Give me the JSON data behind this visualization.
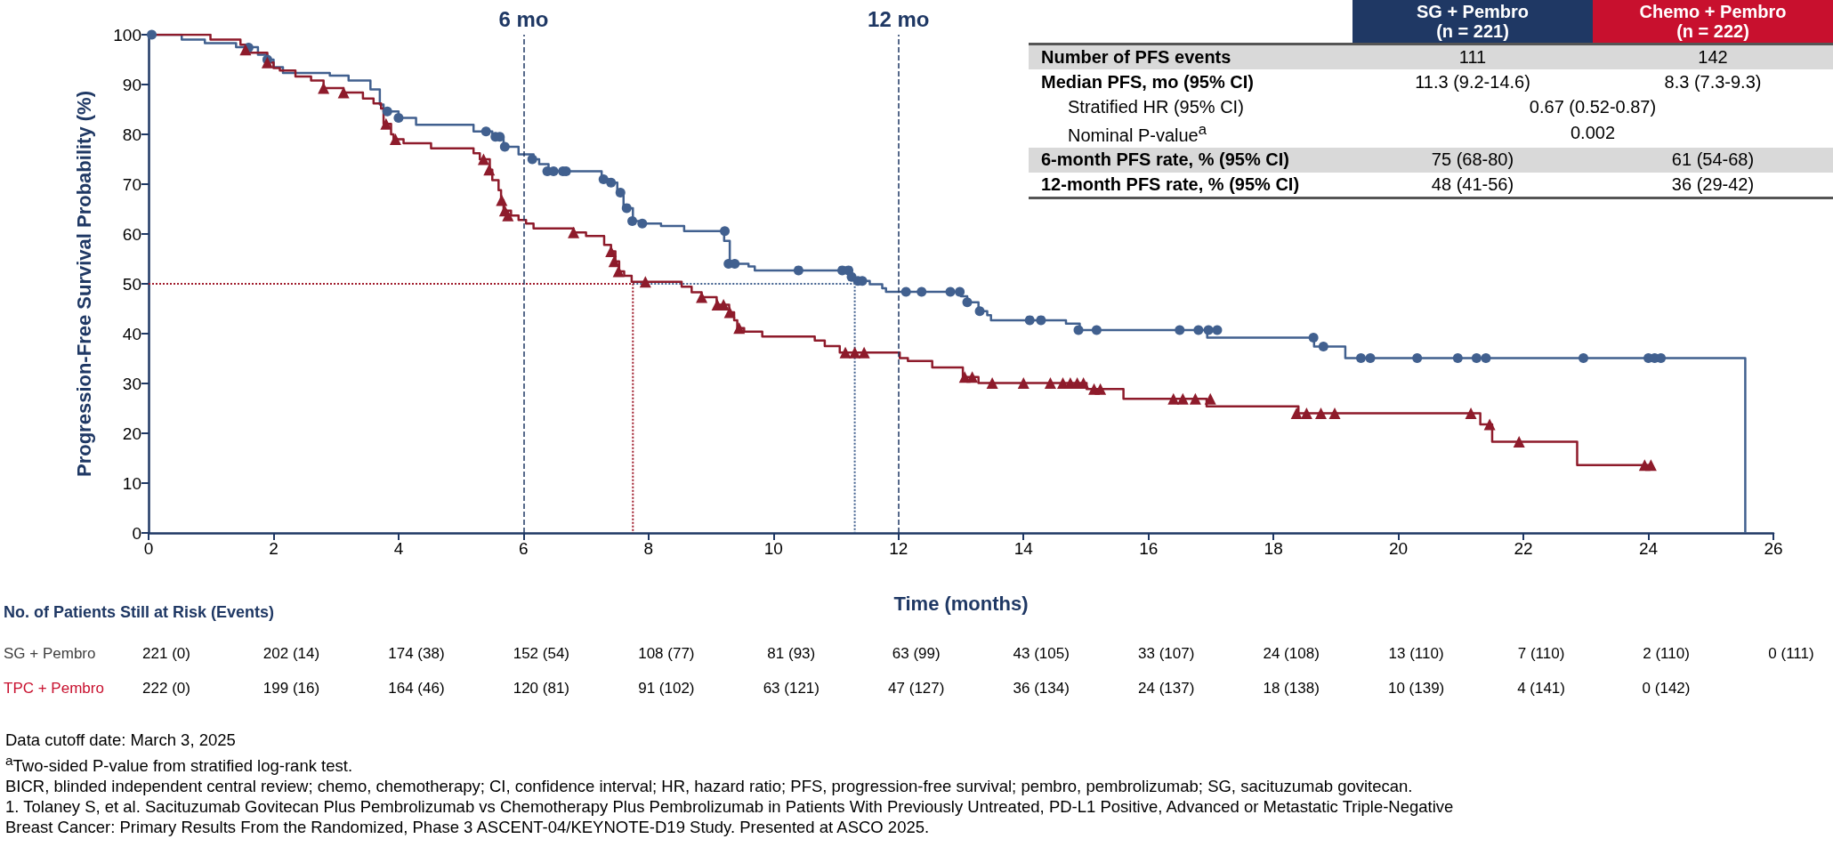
{
  "chart_data": [
    {
      "type": "step",
      "xlabel": "Time (months)",
      "ylabel": "Progression-Free Survival Probability (%)",
      "xlim": [
        0,
        26
      ],
      "ylim": [
        0,
        100
      ],
      "xticks": [
        0,
        2,
        4,
        6,
        8,
        10,
        12,
        14,
        16,
        18,
        20,
        22,
        24,
        26
      ],
      "yticks": [
        0,
        10,
        20,
        30,
        40,
        50,
        60,
        70,
        80,
        90,
        100
      ],
      "series": [
        {
          "type": "line",
          "color": "#41608f",
          "line_style": "dotted",
          "x": [
            7.75,
            11.3,
            11.3
          ],
          "values": [
            50,
            50,
            0
          ]
        },
        {
          "type": "line",
          "color": "#a01c2c",
          "line_style": "dotted",
          "x": [
            0,
            7.75,
            7.75
          ],
          "values": [
            50,
            50,
            0
          ]
        },
        {
          "type": "step",
          "color": "#41608f",
          "x": [
            0,
            0.53,
            0.9,
            1.4,
            1.75,
            1.9,
            2.0,
            2.15,
            2.9,
            3.2,
            3.55,
            3.7,
            3.76,
            4.0,
            4.28,
            5.2,
            5.5,
            5.68,
            5.92,
            6.16,
            6.25,
            6.4,
            7.25,
            7.4,
            7.5,
            7.6,
            7.75,
            7.93,
            8.2,
            8.57,
            9.21,
            9.3,
            9.6,
            9.7,
            11.2,
            11.3,
            11.54,
            11.74,
            11.8,
            13.0,
            13.1,
            13.28,
            13.42,
            13.48,
            14.68,
            14.9,
            16.94,
            18.65,
            19.15,
            25.55
          ],
          "values": [
            100,
            99,
            98.3,
            97.5,
            96,
            95,
            93.5,
            92.3,
            91.8,
            90.8,
            89,
            86,
            84.6,
            83.3,
            81.9,
            80.6,
            79.5,
            77.5,
            76,
            75,
            74,
            72.6,
            71,
            70.3,
            68.3,
            65.2,
            62.6,
            62.1,
            61.6,
            60.6,
            58.6,
            54,
            53.5,
            52.7,
            51.4,
            50.6,
            49.9,
            49.1,
            48.4,
            47.5,
            46.3,
            44.5,
            43.7,
            42.7,
            42,
            40.7,
            39.2,
            37.4,
            35.1,
            0
          ]
        },
        {
          "type": "step",
          "color": "#8e1b2b",
          "x": [
            0,
            0.99,
            1.47,
            1.6,
            1.9,
            2.0,
            2.1,
            2.35,
            2.6,
            2.8,
            3.12,
            3.43,
            3.6,
            3.72,
            3.76,
            3.88,
            3.92,
            4.08,
            4.52,
            5.2,
            5.3,
            5.46,
            5.5,
            5.6,
            5.64,
            5.68,
            5.8,
            5.92,
            6.04,
            6.16,
            6.8,
            7.0,
            7.29,
            7.4,
            7.47,
            7.53,
            7.61,
            7.73,
            8.53,
            8.69,
            8.85,
            9.09,
            9.29,
            9.37,
            9.42,
            9.53,
            9.82,
            10.66,
            10.82,
            11.06,
            12.02,
            12.15,
            12.54,
            13.03,
            13.28,
            15.01,
            15.6,
            16.93,
            18.4,
            21.31,
            21.5,
            22.86,
            24.04
          ],
          "values": [
            100,
            99,
            98,
            96.4,
            94.4,
            93.3,
            92.8,
            91.6,
            90.8,
            89.3,
            88.4,
            87.2,
            86.2,
            85.2,
            82.1,
            80,
            79,
            78.2,
            77.2,
            76.2,
            75,
            72.9,
            70.8,
            68.8,
            66.8,
            64.7,
            63.7,
            62.8,
            62.1,
            61.1,
            60.3,
            59.6,
            57.8,
            56.5,
            54.5,
            52.5,
            51.6,
            50.4,
            49.4,
            48.3,
            47.3,
            45.8,
            44.3,
            42.7,
            41.1,
            40.4,
            39.4,
            38.6,
            37.5,
            36.2,
            35.1,
            34.5,
            33.2,
            31.3,
            30.1,
            28.9,
            26.9,
            25.4,
            24,
            21.8,
            18.3,
            13.6,
            13.6
          ]
        },
        {
          "type": "scatter",
          "color": "#41608f",
          "marker": "circle",
          "x": [
            0.05,
            1.6,
            1.9,
            3.82,
            4.0,
            5.4,
            5.55,
            5.62,
            5.7,
            6.14,
            6.38,
            6.48,
            6.63,
            6.68,
            7.28,
            7.4,
            7.55,
            7.65,
            7.74,
            7.9,
            9.22,
            9.28,
            9.38,
            10.4,
            11.1,
            11.2,
            11.25,
            11.35,
            11.42,
            12.12,
            12.37,
            12.83,
            12.98,
            13.1,
            13.3,
            14.1,
            14.28,
            14.88,
            15.17,
            16.5,
            16.8,
            16.96,
            17.1,
            18.64,
            18.8,
            19.4,
            19.55,
            20.3,
            20.95,
            21.25,
            21.4,
            22.96,
            24.0,
            24.1,
            24.2
          ],
          "values": [
            100,
            97.4,
            95,
            84.6,
            83.3,
            80.6,
            79.5,
            79.5,
            77.5,
            75,
            72.6,
            72.6,
            72.6,
            72.6,
            71,
            70.3,
            68.3,
            65.2,
            62.6,
            62.1,
            60.6,
            54,
            54,
            52.7,
            52.7,
            52.7,
            51.4,
            50.6,
            50.6,
            48.4,
            48.4,
            48.4,
            48.4,
            46.3,
            44.5,
            42.7,
            42.7,
            40.7,
            40.7,
            40.7,
            40.7,
            40.7,
            40.7,
            39.2,
            37.4,
            35.1,
            35.1,
            35.1,
            35.1,
            35.1,
            35.1,
            35.1,
            35.1,
            35.1,
            35.1
          ]
        },
        {
          "type": "scatter",
          "color": "#8e1b2b",
          "marker": "triangle",
          "x": [
            1.55,
            1.9,
            2.8,
            3.12,
            3.8,
            3.95,
            5.36,
            5.45,
            5.65,
            5.7,
            5.75,
            6.8,
            7.4,
            7.45,
            7.52,
            7.95,
            8.85,
            9.1,
            9.2,
            9.3,
            9.45,
            11.15,
            11.3,
            11.45,
            13.06,
            13.18,
            13.5,
            14.0,
            14.43,
            14.63,
            14.75,
            14.86,
            14.96,
            15.13,
            15.23,
            16.4,
            16.55,
            16.75,
            16.99,
            18.37,
            18.53,
            18.76,
            18.98,
            21.16,
            21.46,
            21.93,
            23.94,
            24.04
          ],
          "values": [
            97,
            94.4,
            89.3,
            88.4,
            82.1,
            79,
            75,
            72.9,
            66.8,
            64.7,
            63.7,
            60.3,
            56.5,
            54.5,
            52.5,
            50.4,
            47.3,
            45.8,
            45.8,
            44.3,
            41.1,
            36.2,
            36.2,
            36.2,
            31.3,
            31.3,
            30.1,
            30.1,
            30.1,
            30.1,
            30.1,
            30.1,
            30.1,
            28.9,
            28.9,
            26.9,
            26.9,
            26.9,
            26.9,
            24,
            24,
            24,
            24,
            24,
            21.8,
            18.3,
            13.6,
            13.6
          ]
        }
      ],
      "ref_lines": [
        {
          "axis": "x",
          "value": 6,
          "label": "6 mo",
          "color": "#1f3864",
          "line_style": "dashed"
        },
        {
          "axis": "x",
          "value": 12,
          "label": "12 mo",
          "color": "#1f3864",
          "line_style": "dashed"
        }
      ],
      "annotations": [
        "Data cutoff date: March 3, 2025",
        "$^{a}$Two-sided P-value from stratified log-rank test.",
        "BICR, blinded independent central review; chemo, chemotherapy; CI, confidence interval; HR, hazard ratio; PFS, progression-free survival; pembro, pembrolizumab; SG, sacituzumab govitecan.",
        "1. Tolaney S, et al. Sacituzumab Govitecan Plus Pembrolizumab vs Chemotherapy Plus Pembrolizumab in Patients With Previously Untreated, PD-L1 Positive, Advanced or Metastatic Triple-Negative",
        "Breast Cancer: Primary Results From the Randomized, Phase 3 ASCENT-04/KEYNOTE-D19 Study. Presented at ASCO 2025."
      ]
    },
    {
      "type": "other",
      "categories": [
        "SG + Pembro\n(n = 221)",
        "Chemo + Pembro\n(n = 222)"
      ],
      "colors": [
        "#1f3864",
        "#c8102e"
      ],
      "y_categories": [
        "Number of PFS events",
        "Median PFS, mo (95% CI)",
        "Stratified HR (95% CI)",
        "Nominal P-value$^{a}$",
        "6-month PFS rate, % (95% CI)",
        "12-month PFS rate, % (95% CI)"
      ],
      "cell_labels": [
        [
          "111",
          "142"
        ],
        [
          "11.3 (9.2-14.6)",
          "8.3 (7.3-9.3)"
        ],
        [
          "0.67 (0.52-0.87)",
          null
        ],
        [
          "0.002",
          null
        ],
        [
          "75 (68-80)",
          "61 (54-68)"
        ],
        [
          "48 (41-56)",
          "36 (29-42)"
        ]
      ]
    },
    {
      "type": "other",
      "title": "No. of Patients Still at Risk (Events)",
      "y_categories": [
        "SG + Pembro",
        "TPC + Pembro"
      ],
      "colors": [
        "#404040",
        "#c8102e"
      ],
      "cell_labels": [
        [
          "221 (0)",
          "202 (14)",
          "174 (38)",
          "152 (54)",
          "108 (77)",
          "81 (93)",
          "63 (99)",
          "43 (105)",
          "33 (107)",
          "24 (108)",
          "13 (110)",
          "7 (110)",
          "2 (110)",
          "0 (111)"
        ],
        [
          "222 (0)",
          "199 (16)",
          "164 (46)",
          "120 (81)",
          "91 (102)",
          "63 (121)",
          "47 (127)",
          "36 (134)",
          "24 (137)",
          "18 (138)",
          "10 (139)",
          "4 (141)",
          "0 (142)",
          null
        ]
      ]
    }
  ]
}
